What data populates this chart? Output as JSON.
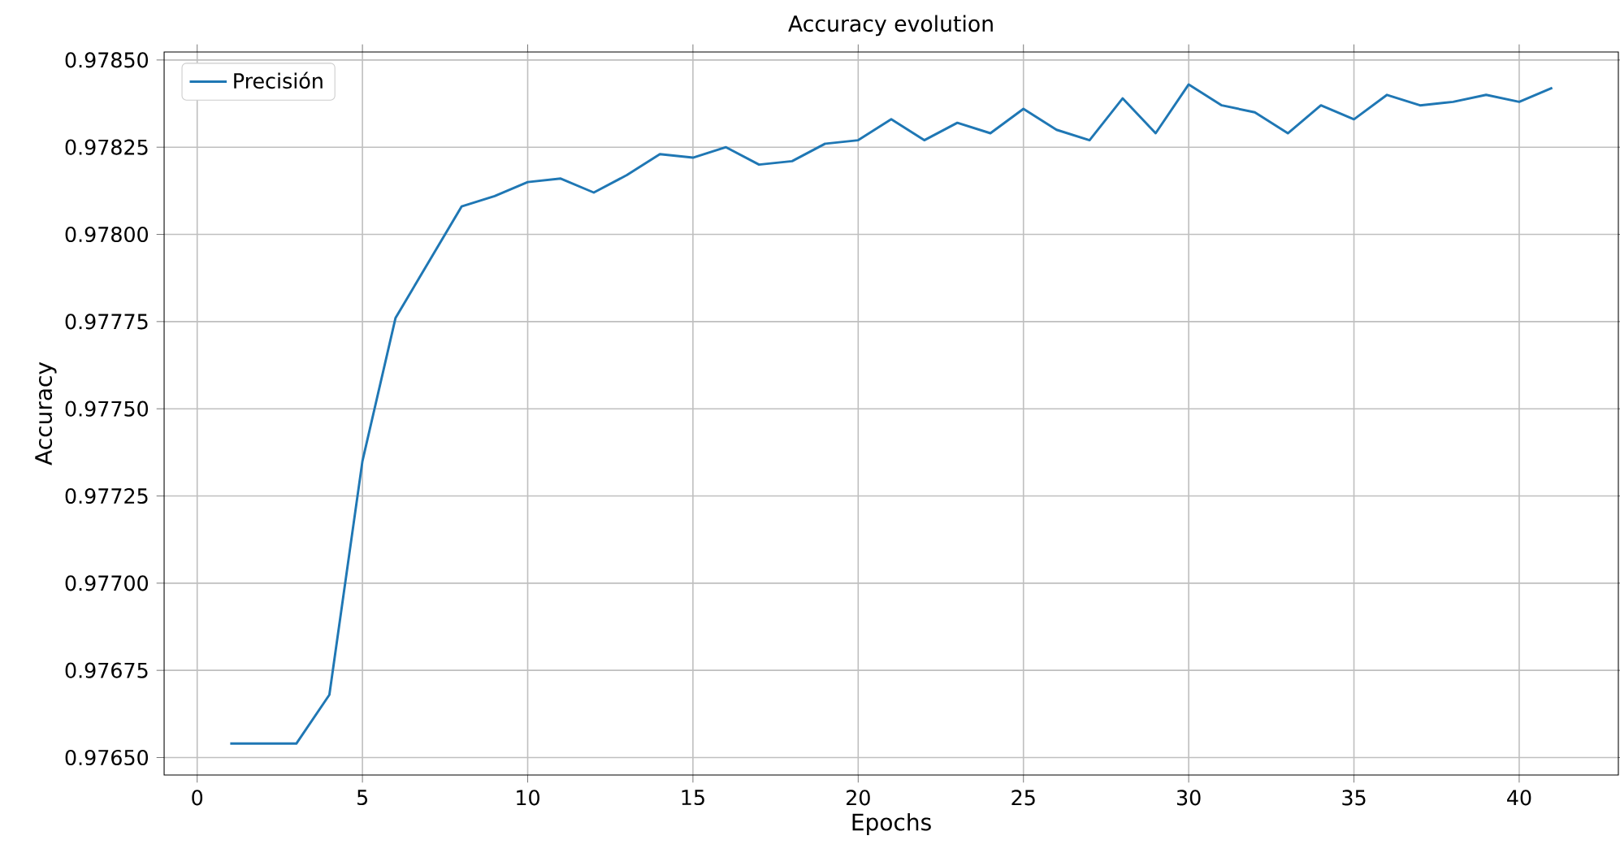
{
  "chart_data": {
    "type": "line",
    "title": "Accuracy evolution",
    "xlabel": "Epochs",
    "ylabel": "Accuracy",
    "x": [
      1,
      2,
      3,
      4,
      5,
      6,
      7,
      8,
      9,
      10,
      11,
      12,
      13,
      14,
      15,
      16,
      17,
      18,
      19,
      20,
      21,
      22,
      23,
      24,
      25,
      26,
      27,
      28,
      29,
      30,
      31,
      32,
      33,
      34,
      35,
      36,
      37,
      38,
      39,
      40,
      41
    ],
    "series": [
      {
        "name": "Precisión",
        "color": "#1f77b4",
        "values": [
          0.97654,
          0.97654,
          0.97654,
          0.97668,
          0.97735,
          0.97776,
          0.97792,
          0.97808,
          0.97811,
          0.97815,
          0.97816,
          0.97812,
          0.97817,
          0.97823,
          0.97822,
          0.97825,
          0.9782,
          0.97821,
          0.97826,
          0.97827,
          0.97833,
          0.97827,
          0.97832,
          0.97829,
          0.97836,
          0.9783,
          0.97827,
          0.97839,
          0.97829,
          0.97843,
          0.97837,
          0.97835,
          0.97829,
          0.97837,
          0.97833,
          0.9784,
          0.97837,
          0.97838,
          0.9784,
          0.97838,
          0.97842
        ]
      }
    ],
    "xlim": [
      -1,
      43
    ],
    "xticks": [
      0,
      5,
      10,
      15,
      20,
      25,
      30,
      35,
      40
    ],
    "ylim": [
      0.97645,
      0.978523
    ],
    "yticks": [
      {
        "value": 0.9765,
        "label": "0.97650"
      },
      {
        "value": 0.97675,
        "label": "0.97675"
      },
      {
        "value": 0.977,
        "label": "0.97700"
      },
      {
        "value": 0.97725,
        "label": "0.97725"
      },
      {
        "value": 0.9775,
        "label": "0.97750"
      },
      {
        "value": 0.97775,
        "label": "0.97775"
      },
      {
        "value": 0.978,
        "label": "0.97800"
      },
      {
        "value": 0.97825,
        "label": "0.97825"
      },
      {
        "value": 0.9785,
        "label": "0.97850"
      }
    ],
    "grid": true,
    "legend": "top left",
    "marker": "none",
    "line_style": "solid"
  }
}
